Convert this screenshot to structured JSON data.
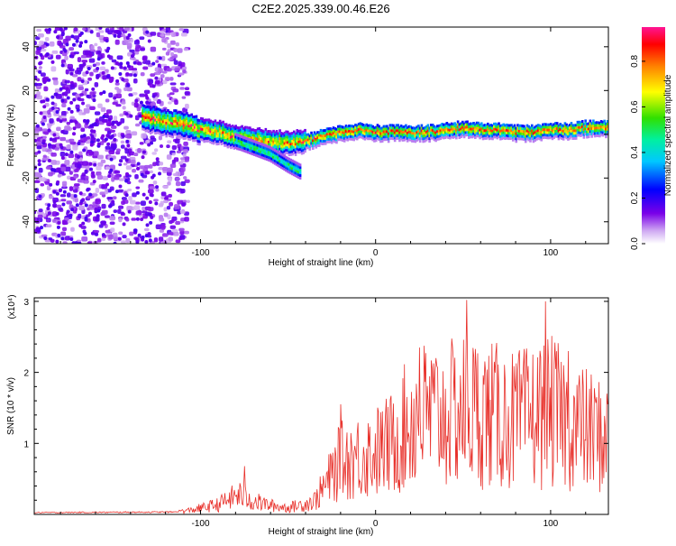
{
  "title": "C2E2.2025.339.00.46.E26",
  "chart_data": [
    {
      "type": "heatmap",
      "xlabel": "Height of straight line (km)",
      "ylabel": "Frequency (Hz)",
      "xlim": [
        -195,
        133
      ],
      "ylim": [
        -50,
        49
      ],
      "xticks": [
        -100,
        0,
        100
      ],
      "yticks": [
        -40,
        -20,
        0,
        20,
        40
      ],
      "colorbar": {
        "label": "Normalized spectral amplitude",
        "range": [
          0,
          0.95
        ],
        "ticks": [
          0.0,
          0.2,
          0.4,
          0.6,
          0.8
        ],
        "tick_labels": [
          "0.0",
          "0.2",
          "0.4",
          "0.6",
          "0.8"
        ]
      },
      "ridge_path": [
        {
          "x": -133,
          "y": 8
        },
        {
          "x": -120,
          "y": 6
        },
        {
          "x": -110,
          "y": 5
        },
        {
          "x": -100,
          "y": 2
        },
        {
          "x": -90,
          "y": 1
        },
        {
          "x": -80,
          "y": -1
        },
        {
          "x": -70,
          "y": -2
        },
        {
          "x": -60,
          "y": -3
        },
        {
          "x": -50,
          "y": -4
        },
        {
          "x": -40,
          "y": -3
        },
        {
          "x": -30,
          "y": -1
        },
        {
          "x": -20,
          "y": 1
        },
        {
          "x": -10,
          "y": 2
        },
        {
          "x": 0,
          "y": 1
        },
        {
          "x": 10,
          "y": 1
        },
        {
          "x": 20,
          "y": 1
        },
        {
          "x": 30,
          "y": 1
        },
        {
          "x": 40,
          "y": 2
        },
        {
          "x": 50,
          "y": 3
        },
        {
          "x": 60,
          "y": 2
        },
        {
          "x": 70,
          "y": 2
        },
        {
          "x": 80,
          "y": 1
        },
        {
          "x": 90,
          "y": 1
        },
        {
          "x": 100,
          "y": 2
        },
        {
          "x": 110,
          "y": 2
        },
        {
          "x": 120,
          "y": 3
        },
        {
          "x": 133,
          "y": 3
        }
      ],
      "secondary_branch": [
        {
          "x": -80,
          "y": -3
        },
        {
          "x": -70,
          "y": -6
        },
        {
          "x": -60,
          "y": -9
        },
        {
          "x": -50,
          "y": -14
        },
        {
          "x": -43,
          "y": -17
        }
      ]
    },
    {
      "type": "line",
      "xlabel": "Height of straight line (km)",
      "ylabel": "SNR (10 * v/v)",
      "multiplier": "(x10⁴)",
      "xlim": [
        -195,
        133
      ],
      "ylim": [
        0,
        3.05
      ],
      "xticks": [
        -100,
        0,
        100
      ],
      "yticks": [
        1,
        2,
        3
      ],
      "color": "#e8302a",
      "envelope": [
        {
          "x": -195,
          "y": 0.03
        },
        {
          "x": -115,
          "y": 0.04
        },
        {
          "x": -105,
          "y": 0.1
        },
        {
          "x": -90,
          "y": 0.22
        },
        {
          "x": -78,
          "y": 0.45
        },
        {
          "x": -70,
          "y": 0.3
        },
        {
          "x": -60,
          "y": 0.2
        },
        {
          "x": -50,
          "y": 0.15
        },
        {
          "x": -42,
          "y": 0.22
        },
        {
          "x": -35,
          "y": 0.3
        },
        {
          "x": -28,
          "y": 0.7
        },
        {
          "x": -20,
          "y": 1.2
        },
        {
          "x": -10,
          "y": 1.3
        },
        {
          "x": 0,
          "y": 1.4
        },
        {
          "x": 10,
          "y": 1.6
        },
        {
          "x": 20,
          "y": 2.1
        },
        {
          "x": 30,
          "y": 2.3
        },
        {
          "x": 40,
          "y": 2.2
        },
        {
          "x": 50,
          "y": 2.35
        },
        {
          "x": 60,
          "y": 2.3
        },
        {
          "x": 70,
          "y": 2.2
        },
        {
          "x": 80,
          "y": 2.1
        },
        {
          "x": 90,
          "y": 2.2
        },
        {
          "x": 100,
          "y": 2.3
        },
        {
          "x": 110,
          "y": 2.1
        },
        {
          "x": 120,
          "y": 1.9
        },
        {
          "x": 133,
          "y": 1.7
        }
      ],
      "peaks": [
        {
          "x": -75,
          "y": 0.68
        },
        {
          "x": -20,
          "y": 1.55
        },
        {
          "x": 25,
          "y": 2.35
        },
        {
          "x": 52,
          "y": 3.02
        },
        {
          "x": 97,
          "y": 3.0
        },
        {
          "x": 110,
          "y": 2.3
        }
      ]
    }
  ]
}
